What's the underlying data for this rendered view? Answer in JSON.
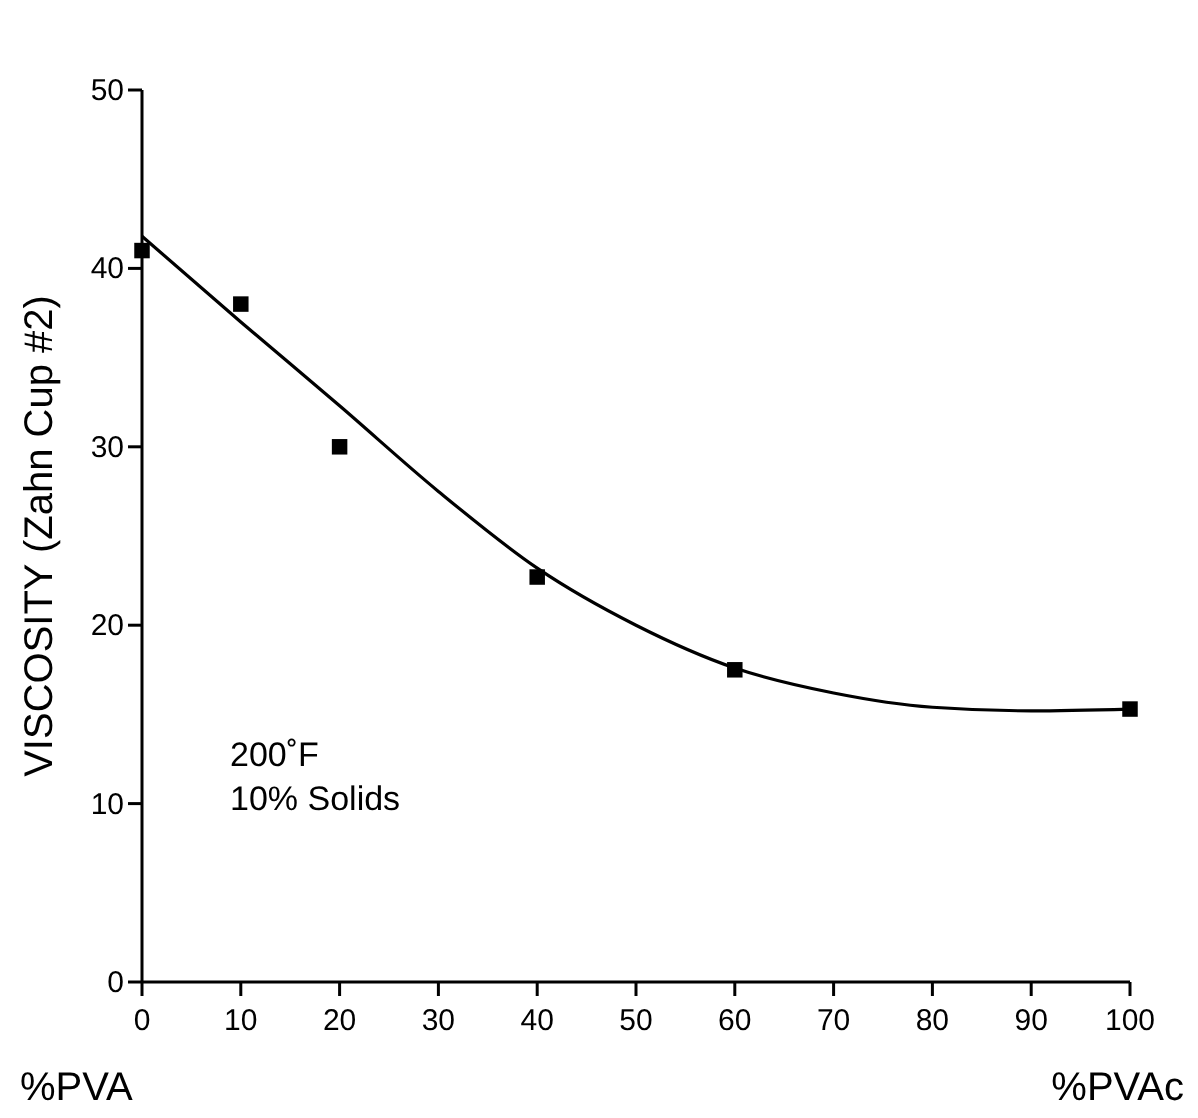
{
  "chart_data": {
    "type": "scatter",
    "ylabel": "VISCOSITY (Zahn Cup #2)",
    "marker": "square",
    "xlim": [
      0,
      100
    ],
    "xticks": [
      0,
      10,
      20,
      30,
      40,
      50,
      60,
      70,
      80,
      90,
      100
    ],
    "ylim": [
      0,
      50
    ],
    "yticks": [
      0,
      10,
      20,
      30,
      40,
      50
    ],
    "grid": false,
    "series": [
      {
        "color": "#000000",
        "x": [
          0,
          10,
          20,
          40,
          60,
          100
        ],
        "values": [
          41,
          38,
          30,
          22.7,
          17.5,
          15.3
        ]
      },
      {
        "type": "line",
        "color": "#000000",
        "marker": "none",
        "x": [
          0,
          10,
          20,
          30,
          40,
          50,
          60,
          70,
          80,
          90,
          100
        ],
        "values": [
          41.8,
          37,
          32.3,
          27.5,
          23.2,
          20,
          17.6,
          16.2,
          15.4,
          15.2,
          15.3
        ]
      }
    ],
    "annotations": [
      "200˚F",
      "10% Solids",
      "%PVA",
      "%PVAc"
    ]
  }
}
